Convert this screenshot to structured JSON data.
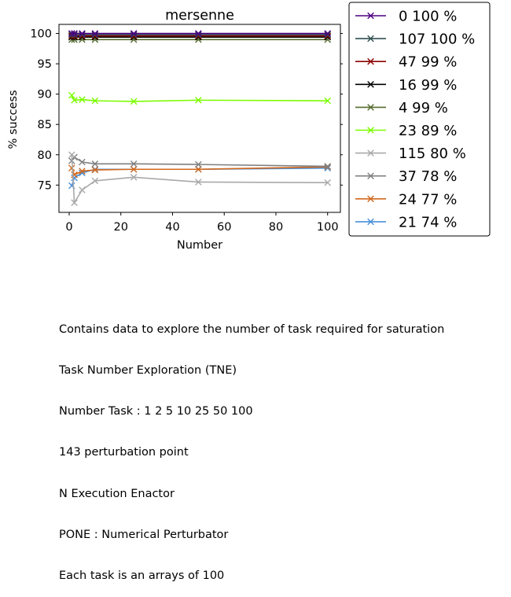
{
  "chart_data": {
    "type": "line",
    "title": "mersenne",
    "xlabel": "Number",
    "ylabel": "% success",
    "x": [
      1,
      2,
      5,
      10,
      25,
      50,
      100
    ],
    "xlim": [
      -3.95,
      104.95
    ],
    "ylim": [
      70.5,
      101.5
    ],
    "xticks": [
      0,
      20,
      40,
      60,
      80,
      100
    ],
    "yticks": [
      75,
      80,
      85,
      90,
      95,
      100
    ],
    "marker": "x",
    "grid": false,
    "legend_position": "outside-right",
    "series": [
      {
        "name": "0 100 %",
        "color": "#4b0082",
        "values": [
          100.0,
          100.0,
          100.0,
          100.0,
          100.0,
          100.0,
          100.0
        ]
      },
      {
        "name": "107 100 %",
        "color": "#2f4f4f",
        "values": [
          99.8,
          99.8,
          99.8,
          99.8,
          99.8,
          99.8,
          99.8
        ]
      },
      {
        "name": "47 99 %",
        "color": "#8b0000",
        "values": [
          99.6,
          99.6,
          99.6,
          99.6,
          99.6,
          99.6,
          99.6
        ]
      },
      {
        "name": "16 99 %",
        "color": "#000000",
        "values": [
          99.4,
          99.4,
          99.4,
          99.4,
          99.4,
          99.4,
          99.4
        ]
      },
      {
        "name": "4 99 %",
        "color": "#556b2f",
        "values": [
          99.0,
          99.0,
          99.0,
          99.0,
          99.0,
          99.0,
          99.0
        ]
      },
      {
        "name": "23 89 %",
        "color": "#7cfc00",
        "values": [
          89.8,
          89.0,
          89.1,
          88.9,
          88.8,
          89.0,
          88.9
        ]
      },
      {
        "name": "115 80 %",
        "color": "#a9a9a9",
        "values": [
          80.0,
          72.1,
          74.2,
          75.7,
          76.3,
          75.5,
          75.4
        ]
      },
      {
        "name": "37 78 %",
        "color": "#808080",
        "values": [
          79.0,
          79.6,
          78.8,
          78.5,
          78.5,
          78.4,
          78.1
        ]
      },
      {
        "name": "24 77 %",
        "color": "#d2691e",
        "values": [
          77.8,
          76.7,
          77.3,
          77.5,
          77.6,
          77.6,
          78.0
        ]
      },
      {
        "name": "21 74 %",
        "color": "#4a90d9",
        "values": [
          74.9,
          76.2,
          77.0,
          77.6,
          77.6,
          77.6,
          77.8
        ]
      }
    ]
  },
  "caption": [
    "Contains data to explore the number of task required for saturation",
    "Task Number Exploration (TNE)",
    "Number Task : 1 2 5 10 25 50 100",
    "143 perturbation point",
    "N Execution Enactor",
    "PONE : Numerical Perturbator",
    "Each task is an arrays of 100"
  ]
}
